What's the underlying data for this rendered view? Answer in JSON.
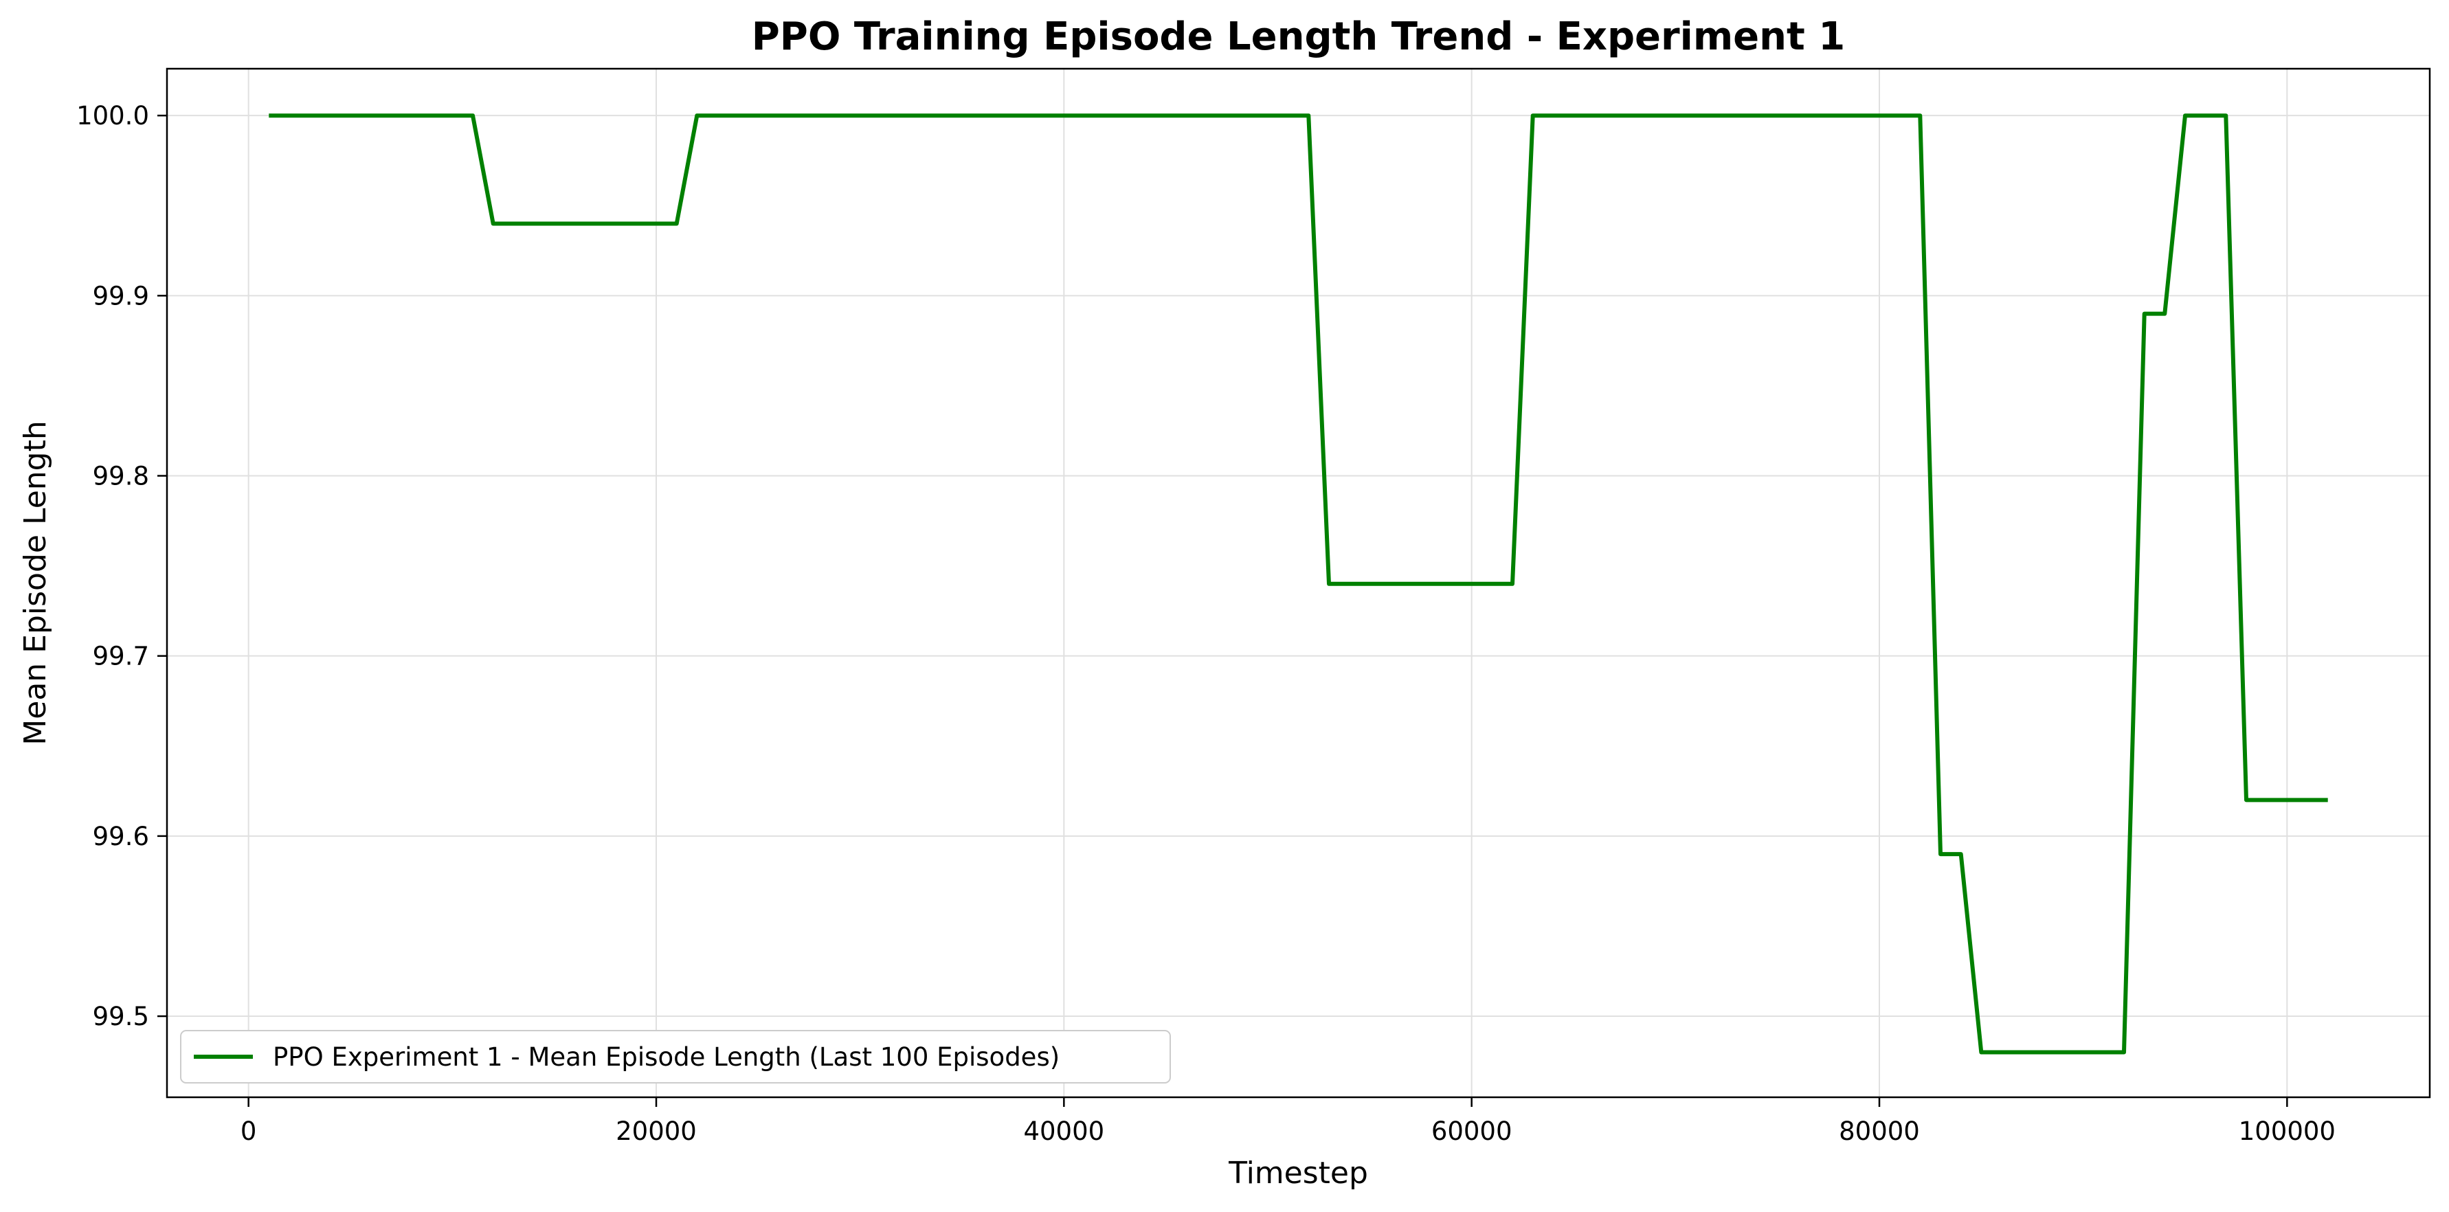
{
  "colors": {
    "line": "#008000",
    "grid": "#e0e0e0",
    "axis": "#000000",
    "legend_border": "#cccccc"
  },
  "chart_data": {
    "type": "line",
    "title": "PPO Training Episode Length Trend - Experiment 1",
    "xlabel": "Timestep",
    "ylabel": "Mean Episode Length",
    "xlim": [
      -4000,
      107000
    ],
    "ylim": [
      99.455,
      100.026
    ],
    "grid": true,
    "legend_position": "lower-left",
    "x_ticks": [
      0,
      20000,
      40000,
      60000,
      80000,
      100000
    ],
    "x_tick_labels": [
      "0",
      "20000",
      "40000",
      "60000",
      "80000",
      "100000"
    ],
    "y_ticks": [
      99.5,
      99.6,
      99.7,
      99.8,
      99.9,
      100.0
    ],
    "y_tick_labels": [
      "99.5",
      "99.6",
      "99.7",
      "99.8",
      "99.9",
      "100.0"
    ],
    "series": [
      {
        "name": "PPO Experiment 1 - Mean Episode Length (Last 100 Episodes)",
        "x": [
          1000,
          11000,
          12000,
          21000,
          22000,
          52000,
          53000,
          62000,
          63000,
          82000,
          83000,
          84000,
          85000,
          92000,
          93000,
          94000,
          95000,
          97000,
          98000,
          102000
        ],
        "y": [
          100.0,
          100.0,
          99.94,
          99.94,
          100.0,
          100.0,
          99.74,
          99.74,
          100.0,
          100.0,
          99.59,
          99.59,
          99.48,
          99.48,
          99.89,
          99.89,
          100.0,
          100.0,
          99.62,
          99.62
        ]
      }
    ]
  }
}
